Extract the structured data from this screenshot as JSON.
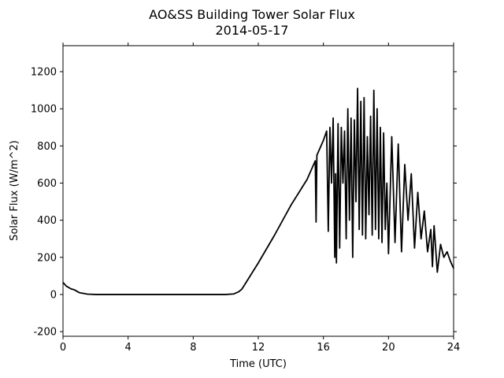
{
  "chart_data": {
    "type": "line",
    "title": "AO&SS Building Tower Solar Flux",
    "subtitle": "2014-05-17",
    "x_label": "Time (UTC)",
    "y_label": "Solar Flux (W/m^2)",
    "xlim": [
      0,
      24
    ],
    "ylim": [
      -225,
      1340
    ],
    "xticks": [
      0,
      4,
      8,
      12,
      16,
      20,
      24
    ],
    "yticks": [
      -200,
      0,
      200,
      400,
      600,
      800,
      1000,
      1200
    ],
    "color": "#000000",
    "x": [
      0,
      0.2,
      0.5,
      0.7,
      1,
      1.5,
      2,
      4,
      6,
      8,
      10,
      10.5,
      10.8,
      11,
      11.5,
      12,
      13,
      14,
      15,
      15.5,
      15.55,
      15.6,
      16,
      16.2,
      16.3,
      16.4,
      16.5,
      16.6,
      16.7,
      16.75,
      16.8,
      16.9,
      17.0,
      17.1,
      17.2,
      17.3,
      17.4,
      17.5,
      17.6,
      17.7,
      17.8,
      17.9,
      18.0,
      18.1,
      18.2,
      18.3,
      18.4,
      18.5,
      18.6,
      18.7,
      18.8,
      18.9,
      19.0,
      19.1,
      19.2,
      19.3,
      19.4,
      19.5,
      19.6,
      19.7,
      19.8,
      19.9,
      20.0,
      20.2,
      20.4,
      20.6,
      20.8,
      21.0,
      21.2,
      21.4,
      21.6,
      21.8,
      22.0,
      22.2,
      22.4,
      22.6,
      22.7,
      22.8,
      23.0,
      23.2,
      23.4,
      23.6,
      23.8,
      24.0
    ],
    "values": [
      65,
      45,
      30,
      25,
      10,
      2,
      0,
      0,
      0,
      0,
      0,
      3,
      15,
      30,
      100,
      170,
      320,
      480,
      620,
      720,
      390,
      750,
      830,
      880,
      340,
      900,
      600,
      950,
      200,
      650,
      170,
      920,
      250,
      900,
      600,
      880,
      300,
      1000,
      400,
      950,
      200,
      940,
      500,
      1110,
      350,
      1040,
      320,
      1060,
      300,
      850,
      430,
      960,
      320,
      1100,
      350,
      1000,
      300,
      900,
      280,
      870,
      350,
      600,
      220,
      850,
      280,
      810,
      230,
      700,
      400,
      650,
      250,
      550,
      300,
      450,
      230,
      350,
      150,
      370,
      120,
      270,
      200,
      230,
      180,
      140
    ]
  }
}
